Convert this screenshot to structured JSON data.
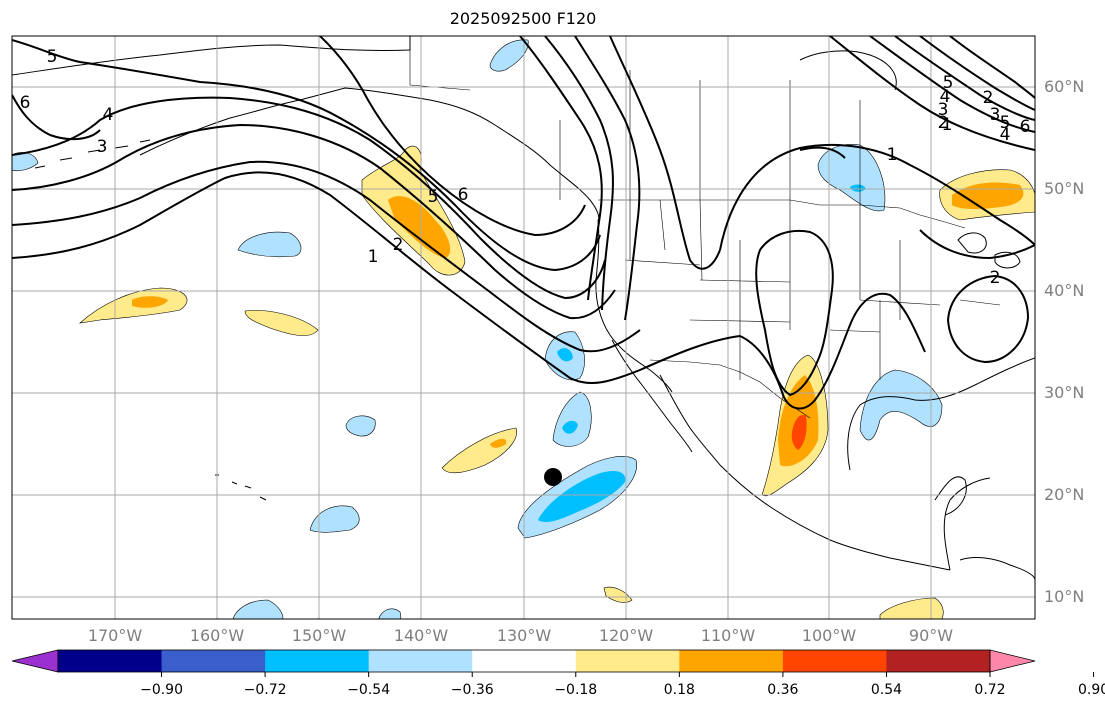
{
  "title": "2025092500 F120",
  "map": {
    "lat_labels": [
      "60°N",
      "50°N",
      "40°N",
      "30°N",
      "20°N",
      "10°N"
    ],
    "lon_labels": [
      "170°W",
      "160°W",
      "150°W",
      "140°W",
      "130°W",
      "120°W",
      "110°W",
      "100°W",
      "90°W"
    ],
    "contour_labels": [
      "5",
      "6",
      "4",
      "3",
      "5",
      "6",
      "2",
      "1",
      "5",
      "4",
      "3",
      "2",
      "1",
      "6",
      "5",
      "4",
      "3",
      "2",
      "1",
      "2"
    ],
    "marker": "storm-position"
  },
  "colorbar": {
    "tick_labels": [
      "−0.90",
      "−0.72",
      "−0.54",
      "−0.36",
      "−0.18",
      "0.18",
      "0.36",
      "0.54",
      "0.72",
      "0.90"
    ],
    "colors": [
      "#9b30d0",
      "#00008b",
      "#3a5fcd",
      "#00bfff",
      "#b0e2ff",
      "#ffffff",
      "#ffeb8b",
      "#ffa500",
      "#ff4500",
      "#b22222",
      "#ff88aa"
    ]
  }
}
